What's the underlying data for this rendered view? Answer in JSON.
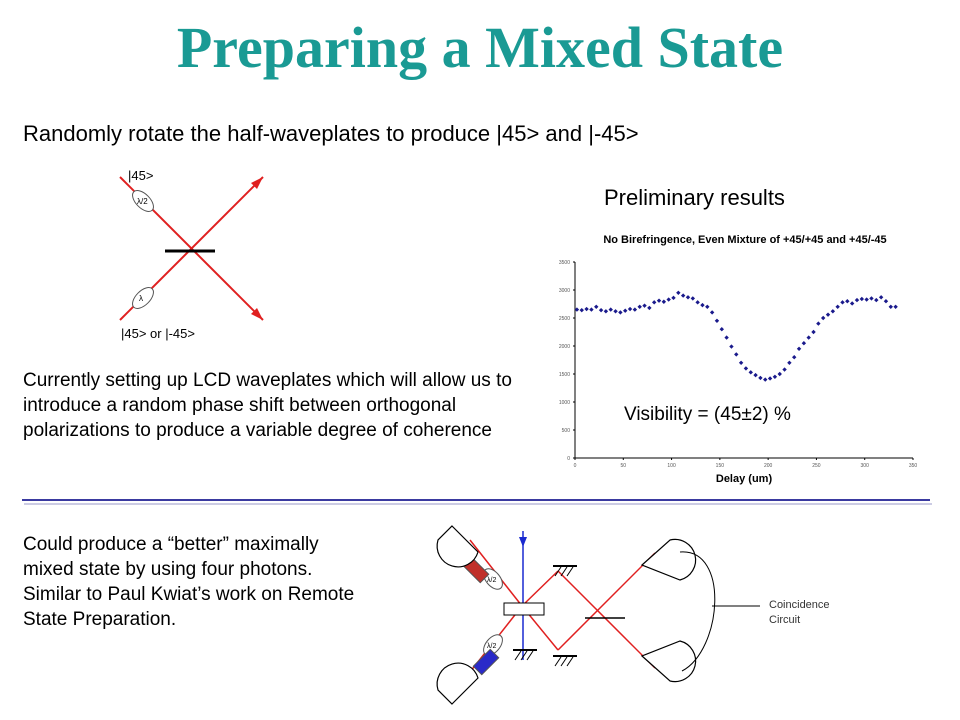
{
  "slide": {
    "title": "Preparing a Mixed State",
    "subtitle": "Randomly rotate the half-waveplates to produce |45> and |-45>",
    "state_top_label": "|45>",
    "state_bottom_label": "|45> or |-45>",
    "waveplate_top_label": "λ/2",
    "waveplate_bottom_label": "λ",
    "paragraph_lcd": "Currently setting up LCD waveplates which will allow us to introduce a random phase shift between orthogonal polarizations to produce a variable degree of coherence",
    "paragraph_four_photon": "Could produce a “better” maximally mixed state by using four photons.   Similar to Paul Kwiat’s work on Remote State Preparation.",
    "preliminary_results": "Preliminary results",
    "visibility": "Visibility = (45±2) %",
    "coincidence_line1": "Coincidence",
    "coincidence_line2": "Circuit",
    "setup_waveplate_label": "λ/2"
  },
  "colors": {
    "title": "#1a9a94",
    "beam": "#e02020",
    "divider": "#3a3aa0",
    "marker": "#1a1a8c",
    "waveplate_red": "#c0302a",
    "waveplate_blue": "#2a2ac8",
    "pump_arrow": "#1a2ad0"
  },
  "chart_data": {
    "type": "scatter",
    "title": "No Birefringence, Even Mixture of +45/+45 and +45/-45",
    "xlabel": "Delay (um)",
    "ylabel": "",
    "xlim": [
      0,
      350
    ],
    "ylim": [
      0,
      3500
    ],
    "xticks": [
      "0",
      "50",
      "100",
      "150",
      "200",
      "250",
      "300",
      "350"
    ],
    "yticks": [
      "0",
      "500",
      "1000",
      "1500",
      "2000",
      "2500",
      "3000",
      "3500"
    ],
    "grid": false,
    "series": [
      {
        "x": [
          2,
          7,
          12,
          17,
          22,
          27,
          32,
          37,
          42,
          47,
          52,
          57,
          62,
          67,
          72,
          77,
          82,
          87,
          92,
          97,
          102,
          107,
          112,
          117,
          122,
          127,
          132,
          137,
          142,
          147,
          152,
          157,
          162,
          167,
          172,
          177,
          182,
          187,
          192,
          197,
          202,
          207,
          212,
          217,
          222,
          227,
          232,
          237,
          242,
          247,
          252,
          257,
          262,
          267,
          272,
          277,
          282,
          287,
          292,
          297,
          302,
          307,
          312,
          317,
          322,
          327,
          332
        ],
        "y": [
          2650,
          2640,
          2660,
          2650,
          2700,
          2640,
          2620,
          2650,
          2620,
          2600,
          2630,
          2660,
          2650,
          2700,
          2720,
          2680,
          2780,
          2810,
          2790,
          2830,
          2860,
          2950,
          2900,
          2870,
          2850,
          2780,
          2730,
          2700,
          2600,
          2450,
          2300,
          2150,
          1990,
          1850,
          1700,
          1600,
          1530,
          1480,
          1430,
          1400,
          1420,
          1450,
          1500,
          1580,
          1700,
          1800,
          1950,
          2050,
          2150,
          2250,
          2400,
          2500,
          2560,
          2620,
          2700,
          2780,
          2800,
          2760,
          2820,
          2840,
          2830,
          2850,
          2820,
          2870,
          2800,
          2700,
          2700
        ]
      }
    ]
  }
}
